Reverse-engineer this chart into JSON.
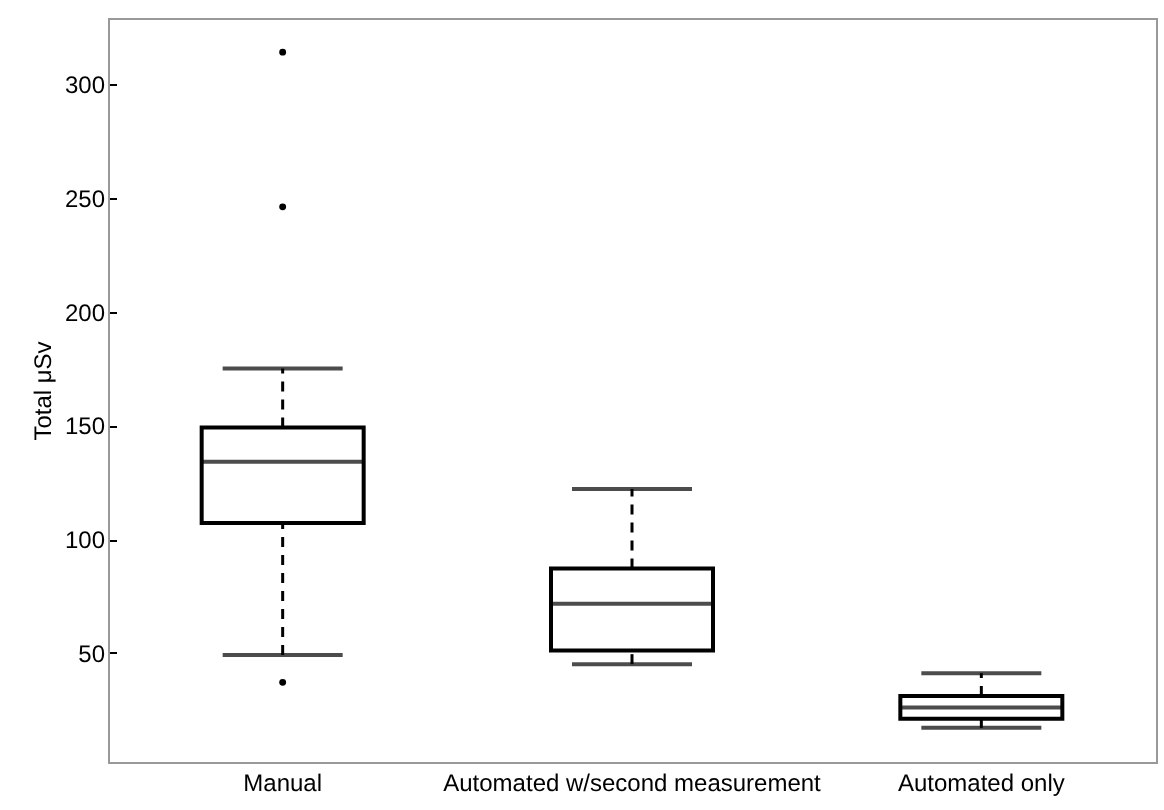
{
  "chart_data": {
    "type": "box",
    "ylabel": "Total μSv",
    "categories": [
      "Manual",
      "Automated w/second measurement",
      "Automated only"
    ],
    "boxes": [
      {
        "low": 49,
        "q1": 107,
        "median": 134,
        "q3": 149,
        "high": 175,
        "outliers": [
          37,
          246,
          314
        ]
      },
      {
        "low": 45,
        "q1": 51,
        "median": 71.5,
        "q3": 87,
        "high": 122
      },
      {
        "low": 17,
        "q1": 21,
        "median": 26,
        "q3": 31,
        "high": 41
      }
    ],
    "ylim": [
      2,
      329
    ],
    "yticks": [
      50,
      100,
      150,
      200,
      250,
      300
    ],
    "grid": false
  }
}
